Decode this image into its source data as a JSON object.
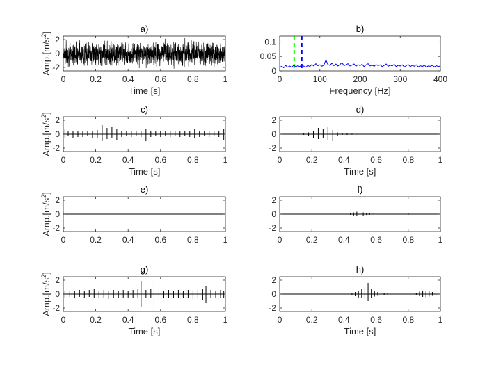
{
  "colors": {
    "background": "#ffffff",
    "axis": "#262626",
    "signal": "#000000",
    "spectrum": "#0000ff",
    "marker_green": "#00ff00",
    "marker_blue": "#0000ff"
  },
  "chart_data": [
    {
      "id": "a",
      "type": "line",
      "title": "a)",
      "xlabel": "Time [s]",
      "ylabel": "Amp.[m/s",
      "ylabel_sup": "2",
      "ylabel_close": "]",
      "xlim": [
        0,
        1
      ],
      "ylim": [
        -2.5,
        2.5
      ],
      "xticks": [
        0,
        0.2,
        0.4,
        0.6,
        0.8,
        1
      ],
      "xtick_labels": [
        "0",
        "0.2",
        "0.4",
        "0.6",
        "0.8",
        "1"
      ],
      "yticks": [
        -2,
        0,
        2
      ],
      "ytick_labels": [
        "-2",
        "0",
        "2"
      ],
      "signal": "dense random noise filling approximately -2.3 to 2.3 across the full time span"
    },
    {
      "id": "b",
      "type": "line",
      "title": "b)",
      "xlabel": "Frequency [Hz]",
      "ylabel": "",
      "xlim": [
        0,
        400
      ],
      "ylim": [
        0,
        0.12
      ],
      "xticks": [
        0,
        100,
        200,
        300,
        400
      ],
      "xtick_labels": [
        "0",
        "100",
        "200",
        "300",
        "400"
      ],
      "yticks": [
        0,
        0.05,
        0.1
      ],
      "ytick_labels": [
        "0",
        "0.05",
        "0.1"
      ],
      "markers": [
        {
          "x": 36,
          "color": "#00ff00"
        },
        {
          "x": 55,
          "color": "#0000ff"
        }
      ],
      "x": [
        0,
        5,
        10,
        15,
        20,
        25,
        30,
        35,
        40,
        45,
        50,
        55,
        60,
        65,
        70,
        75,
        80,
        85,
        90,
        95,
        100,
        105,
        110,
        115,
        120,
        125,
        130,
        135,
        140,
        145,
        150,
        155,
        160,
        165,
        170,
        175,
        180,
        185,
        190,
        195,
        200,
        205,
        210,
        215,
        220,
        225,
        230,
        235,
        240,
        245,
        250,
        255,
        260,
        265,
        270,
        275,
        280,
        285,
        290,
        295,
        300,
        305,
        310,
        315,
        320,
        325,
        330,
        335,
        340,
        345,
        350,
        355,
        360,
        365,
        370,
        375,
        380,
        385,
        390,
        395,
        400
      ],
      "y": [
        0.012,
        0.016,
        0.011,
        0.019,
        0.013,
        0.017,
        0.012,
        0.02,
        0.014,
        0.018,
        0.015,
        0.021,
        0.016,
        0.013,
        0.019,
        0.015,
        0.022,
        0.017,
        0.025,
        0.018,
        0.021,
        0.016,
        0.02,
        0.038,
        0.022,
        0.019,
        0.027,
        0.018,
        0.024,
        0.017,
        0.022,
        0.029,
        0.018,
        0.021,
        0.025,
        0.017,
        0.02,
        0.024,
        0.016,
        0.022,
        0.018,
        0.023,
        0.015,
        0.021,
        0.025,
        0.017,
        0.02,
        0.016,
        0.022,
        0.018,
        0.021,
        0.015,
        0.019,
        0.024,
        0.016,
        0.02,
        0.017,
        0.023,
        0.015,
        0.019,
        0.017,
        0.021,
        0.014,
        0.018,
        0.022,
        0.015,
        0.019,
        0.016,
        0.021,
        0.014,
        0.018,
        0.015,
        0.02,
        0.013,
        0.017,
        0.016,
        0.019,
        0.014,
        0.018,
        0.015,
        0.017
      ]
    },
    {
      "id": "c",
      "type": "bar",
      "title": "c)",
      "xlabel": "Time [s]",
      "ylabel": "Amp.[m/s",
      "ylabel_sup": "2",
      "ylabel_close": "]",
      "xlim": [
        0,
        1
      ],
      "ylim": [
        -2.5,
        2.5
      ],
      "xticks": [
        0,
        0.2,
        0.4,
        0.6,
        0.8,
        1
      ],
      "xtick_labels": [
        "0",
        "0.2",
        "0.4",
        "0.6",
        "0.8",
        "1"
      ],
      "yticks": [
        -2,
        0,
        2
      ],
      "ytick_labels": [
        "-2",
        "0",
        "2"
      ],
      "impulses": [
        {
          "t": 0.01,
          "pos": 0.7,
          "neg": -0.6
        },
        {
          "t": 0.03,
          "pos": 0.4,
          "neg": -0.3
        },
        {
          "t": 0.06,
          "pos": 0.5,
          "neg": -0.5
        },
        {
          "t": 0.09,
          "pos": 0.4,
          "neg": -0.4
        },
        {
          "t": 0.12,
          "pos": 0.5,
          "neg": -0.4
        },
        {
          "t": 0.15,
          "pos": 0.4,
          "neg": -0.3
        },
        {
          "t": 0.18,
          "pos": 0.5,
          "neg": -0.5
        },
        {
          "t": 0.21,
          "pos": 0.6,
          "neg": -0.5
        },
        {
          "t": 0.24,
          "pos": 1.3,
          "neg": -1.0
        },
        {
          "t": 0.27,
          "pos": 0.9,
          "neg": -0.7
        },
        {
          "t": 0.3,
          "pos": 1.1,
          "neg": -0.6
        },
        {
          "t": 0.33,
          "pos": 0.7,
          "neg": -0.8
        },
        {
          "t": 0.36,
          "pos": 0.5,
          "neg": -0.4
        },
        {
          "t": 0.39,
          "pos": 0.4,
          "neg": -0.3
        },
        {
          "t": 0.42,
          "pos": 0.4,
          "neg": -0.4
        },
        {
          "t": 0.45,
          "pos": 0.4,
          "neg": -0.3
        },
        {
          "t": 0.48,
          "pos": 0.5,
          "neg": -0.4
        },
        {
          "t": 0.51,
          "pos": 0.7,
          "neg": -1.0
        },
        {
          "t": 0.54,
          "pos": 0.5,
          "neg": -0.4
        },
        {
          "t": 0.57,
          "pos": 0.4,
          "neg": -0.3
        },
        {
          "t": 0.6,
          "pos": 0.4,
          "neg": -0.4
        },
        {
          "t": 0.63,
          "pos": 0.5,
          "neg": -0.3
        },
        {
          "t": 0.66,
          "pos": 0.4,
          "neg": -0.4
        },
        {
          "t": 0.69,
          "pos": 0.4,
          "neg": -0.3
        },
        {
          "t": 0.72,
          "pos": 0.5,
          "neg": -0.4
        },
        {
          "t": 0.75,
          "pos": 0.4,
          "neg": -0.3
        },
        {
          "t": 0.78,
          "pos": 0.5,
          "neg": -0.4
        },
        {
          "t": 0.81,
          "pos": 0.8,
          "neg": -0.5
        },
        {
          "t": 0.84,
          "pos": 0.4,
          "neg": -0.4
        },
        {
          "t": 0.87,
          "pos": 0.5,
          "neg": -0.3
        },
        {
          "t": 0.9,
          "pos": 0.4,
          "neg": -0.4
        },
        {
          "t": 0.93,
          "pos": 0.5,
          "neg": -0.3
        },
        {
          "t": 0.96,
          "pos": 0.4,
          "neg": -0.4
        },
        {
          "t": 0.99,
          "pos": 0.7,
          "neg": -0.9
        }
      ]
    },
    {
      "id": "d",
      "type": "bar",
      "title": "d)",
      "xlabel": "Time [s]",
      "ylabel": "",
      "xlim": [
        0,
        1
      ],
      "ylim": [
        -2.5,
        2.5
      ],
      "xticks": [
        0,
        0.2,
        0.4,
        0.6,
        0.8,
        1
      ],
      "xtick_labels": [
        "0",
        "0.2",
        "0.4",
        "0.6",
        "0.8",
        "1"
      ],
      "yticks": [
        -2,
        0,
        2
      ],
      "ytick_labels": [
        "-2",
        "0",
        "2"
      ],
      "impulses": [
        {
          "t": 0.15,
          "pos": 0.1,
          "neg": -0.1
        },
        {
          "t": 0.18,
          "pos": 0.25,
          "neg": -0.2
        },
        {
          "t": 0.21,
          "pos": 0.5,
          "neg": -0.5
        },
        {
          "t": 0.24,
          "pos": 0.9,
          "neg": -0.7
        },
        {
          "t": 0.27,
          "pos": 0.7,
          "neg": -0.6
        },
        {
          "t": 0.3,
          "pos": 1.0,
          "neg": -0.8
        },
        {
          "t": 0.33,
          "pos": 0.6,
          "neg": -1.0
        },
        {
          "t": 0.36,
          "pos": 0.25,
          "neg": -0.2
        },
        {
          "t": 0.39,
          "pos": 0.15,
          "neg": -0.1
        },
        {
          "t": 0.42,
          "pos": 0.1,
          "neg": -0.1
        },
        {
          "t": 0.45,
          "pos": 0.08,
          "neg": -0.08
        },
        {
          "t": 0.48,
          "pos": 0.06,
          "neg": -0.05
        }
      ]
    },
    {
      "id": "e",
      "type": "line",
      "title": "e)",
      "xlabel": "",
      "ylabel": "Amp.[m/s",
      "ylabel_sup": "2",
      "ylabel_close": "]",
      "xlim": [
        0,
        1
      ],
      "ylim": [
        -2.5,
        2.5
      ],
      "xticks": [
        0,
        0.2,
        0.4,
        0.6,
        0.8,
        1
      ],
      "xtick_labels": [
        "0",
        "0.2",
        "0.4",
        "0.6",
        "0.8",
        "1"
      ],
      "yticks": [
        -2,
        0,
        2
      ],
      "ytick_labels": [
        "-2",
        "0",
        "2"
      ],
      "impulses": []
    },
    {
      "id": "f",
      "type": "bar",
      "title": "f)",
      "xlabel": "",
      "ylabel": "",
      "xlim": [
        0,
        1
      ],
      "ylim": [
        -2.5,
        2.5
      ],
      "xticks": [
        0,
        0.2,
        0.4,
        0.6,
        0.8,
        1
      ],
      "xtick_labels": [
        "0",
        "0.2",
        "0.4",
        "0.6",
        "0.8",
        "1"
      ],
      "yticks": [
        -2,
        0,
        2
      ],
      "ytick_labels": [
        "-2",
        "0",
        "2"
      ],
      "impulses": [
        {
          "t": 0.44,
          "pos": 0.1,
          "neg": -0.1
        },
        {
          "t": 0.46,
          "pos": 0.25,
          "neg": -0.2
        },
        {
          "t": 0.48,
          "pos": 0.35,
          "neg": -0.3
        },
        {
          "t": 0.5,
          "pos": 0.3,
          "neg": -0.25
        },
        {
          "t": 0.52,
          "pos": 0.25,
          "neg": -0.2
        },
        {
          "t": 0.54,
          "pos": 0.15,
          "neg": -0.12
        },
        {
          "t": 0.56,
          "pos": 0.1,
          "neg": -0.08
        },
        {
          "t": 0.58,
          "pos": 0.06,
          "neg": -0.05
        },
        {
          "t": 0.6,
          "pos": 0.05,
          "neg": -0.04
        },
        {
          "t": 0.62,
          "pos": 0.04,
          "neg": -0.03
        },
        {
          "t": 0.8,
          "pos": 0.15,
          "neg": -0.1
        }
      ]
    },
    {
      "id": "g",
      "type": "bar",
      "title": "g)",
      "xlabel": "Time [s]",
      "ylabel": "Amp.[m/s",
      "ylabel_sup": "2",
      "ylabel_close": "]",
      "xlim": [
        0,
        1
      ],
      "ylim": [
        -2.5,
        2.5
      ],
      "xticks": [
        0,
        0.2,
        0.4,
        0.6,
        0.8,
        1
      ],
      "xtick_labels": [
        "0",
        "0.2",
        "0.4",
        "0.6",
        "0.8",
        "1"
      ],
      "yticks": [
        -2,
        0,
        2
      ],
      "ytick_labels": [
        "-2",
        "0",
        "2"
      ],
      "impulses": [
        {
          "t": 0.01,
          "pos": 0.5,
          "neg": -0.6
        },
        {
          "t": 0.04,
          "pos": 0.4,
          "neg": -0.4
        },
        {
          "t": 0.07,
          "pos": 0.5,
          "neg": -0.5
        },
        {
          "t": 0.1,
          "pos": 0.6,
          "neg": -0.4
        },
        {
          "t": 0.13,
          "pos": 0.5,
          "neg": -0.5
        },
        {
          "t": 0.16,
          "pos": 0.6,
          "neg": -0.4
        },
        {
          "t": 0.19,
          "pos": 0.7,
          "neg": -0.6
        },
        {
          "t": 0.22,
          "pos": 0.5,
          "neg": -0.5
        },
        {
          "t": 0.25,
          "pos": 0.6,
          "neg": -0.6
        },
        {
          "t": 0.28,
          "pos": 0.5,
          "neg": -0.7
        },
        {
          "t": 0.31,
          "pos": 0.6,
          "neg": -0.5
        },
        {
          "t": 0.34,
          "pos": 0.5,
          "neg": -0.5
        },
        {
          "t": 0.37,
          "pos": 0.6,
          "neg": -0.6
        },
        {
          "t": 0.4,
          "pos": 0.5,
          "neg": -0.5
        },
        {
          "t": 0.43,
          "pos": 0.6,
          "neg": -0.6
        },
        {
          "t": 0.46,
          "pos": 0.7,
          "neg": -0.5
        },
        {
          "t": 0.48,
          "pos": 1.9,
          "neg": -1.9
        },
        {
          "t": 0.51,
          "pos": 0.6,
          "neg": -0.6
        },
        {
          "t": 0.54,
          "pos": 0.7,
          "neg": -0.6
        },
        {
          "t": 0.56,
          "pos": 2.2,
          "neg": -2.3
        },
        {
          "t": 0.59,
          "pos": 0.6,
          "neg": -0.6
        },
        {
          "t": 0.62,
          "pos": 0.5,
          "neg": -0.5
        },
        {
          "t": 0.65,
          "pos": 0.6,
          "neg": -0.6
        },
        {
          "t": 0.68,
          "pos": 0.5,
          "neg": -0.5
        },
        {
          "t": 0.71,
          "pos": 0.6,
          "neg": -0.6
        },
        {
          "t": 0.74,
          "pos": 0.5,
          "neg": -0.5
        },
        {
          "t": 0.77,
          "pos": 0.6,
          "neg": -0.6
        },
        {
          "t": 0.8,
          "pos": 0.5,
          "neg": -0.7
        },
        {
          "t": 0.83,
          "pos": 0.6,
          "neg": -0.5
        },
        {
          "t": 0.86,
          "pos": 0.7,
          "neg": -0.8
        },
        {
          "t": 0.88,
          "pos": 1.1,
          "neg": -1.3
        },
        {
          "t": 0.91,
          "pos": 0.6,
          "neg": -0.6
        },
        {
          "t": 0.94,
          "pos": 0.5,
          "neg": -0.5
        },
        {
          "t": 0.97,
          "pos": 0.6,
          "neg": -0.6
        },
        {
          "t": 0.99,
          "pos": 0.5,
          "neg": -0.5
        }
      ]
    },
    {
      "id": "h",
      "type": "bar",
      "title": "h)",
      "xlabel": "Time [s]",
      "ylabel": "",
      "xlim": [
        0,
        1
      ],
      "ylim": [
        -2.5,
        2.5
      ],
      "xticks": [
        0,
        0.2,
        0.4,
        0.6,
        0.8,
        1
      ],
      "xtick_labels": [
        "0",
        "0.2",
        "0.4",
        "0.6",
        "0.8",
        "1"
      ],
      "yticks": [
        -2,
        0,
        2
      ],
      "ytick_labels": [
        "-2",
        "0",
        "2"
      ],
      "impulses": [
        {
          "t": 0.45,
          "pos": 0.1,
          "neg": -0.1
        },
        {
          "t": 0.47,
          "pos": 0.3,
          "neg": -0.3
        },
        {
          "t": 0.49,
          "pos": 0.5,
          "neg": -0.5
        },
        {
          "t": 0.51,
          "pos": 0.7,
          "neg": -0.6
        },
        {
          "t": 0.53,
          "pos": 0.9,
          "neg": -0.7
        },
        {
          "t": 0.55,
          "pos": 1.6,
          "neg": -1.0
        },
        {
          "t": 0.57,
          "pos": 0.8,
          "neg": -0.6
        },
        {
          "t": 0.59,
          "pos": 0.4,
          "neg": -0.35
        },
        {
          "t": 0.61,
          "pos": 0.3,
          "neg": -0.25
        },
        {
          "t": 0.63,
          "pos": 0.2,
          "neg": -0.15
        },
        {
          "t": 0.65,
          "pos": 0.12,
          "neg": -0.1
        },
        {
          "t": 0.67,
          "pos": 0.08,
          "neg": -0.06
        },
        {
          "t": 0.85,
          "pos": 0.2,
          "neg": -0.15
        },
        {
          "t": 0.87,
          "pos": 0.35,
          "neg": -0.3
        },
        {
          "t": 0.89,
          "pos": 0.45,
          "neg": -0.4
        },
        {
          "t": 0.91,
          "pos": 0.5,
          "neg": -0.45
        },
        {
          "t": 0.93,
          "pos": 0.4,
          "neg": -0.35
        },
        {
          "t": 0.95,
          "pos": 0.3,
          "neg": -0.25
        }
      ]
    }
  ]
}
